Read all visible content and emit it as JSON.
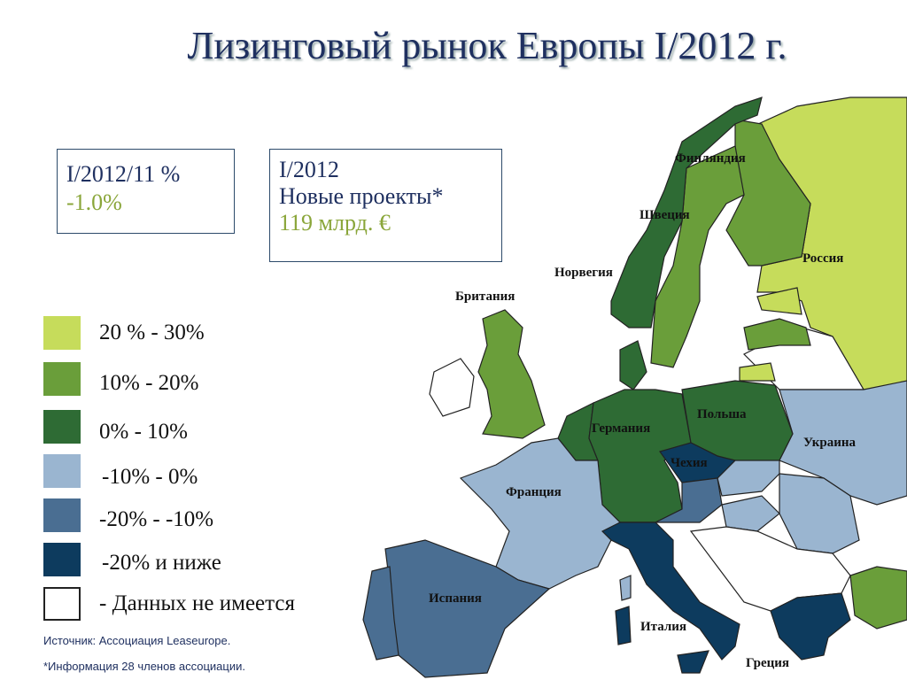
{
  "title": "Лизинговый рынок Европы I/2012 г.",
  "box1": {
    "label": "I/2012/11 %",
    "value": "-1.0%"
  },
  "box2": {
    "period": "I/2012",
    "label": "Новые проекты*",
    "value": "119 млрд. €"
  },
  "legend": [
    "20 % - 30%",
    "10% - 20%",
    "0% - 10%",
    "-10% - 0%",
    "-20% - -10%",
    "-20% и ниже",
    "- Данных не имеется"
  ],
  "countries": [
    "Финляндия",
    "Швеция",
    "Норвегия",
    "Россия",
    "Британия",
    "Германия",
    "Польша",
    "Украина",
    "Чехия",
    "Франция",
    "Испания",
    "Италия",
    "Греция"
  ],
  "source": "Источник: Ассоциация Leaseurope.",
  "note": "*Информация 28 членов ассоциации."
}
